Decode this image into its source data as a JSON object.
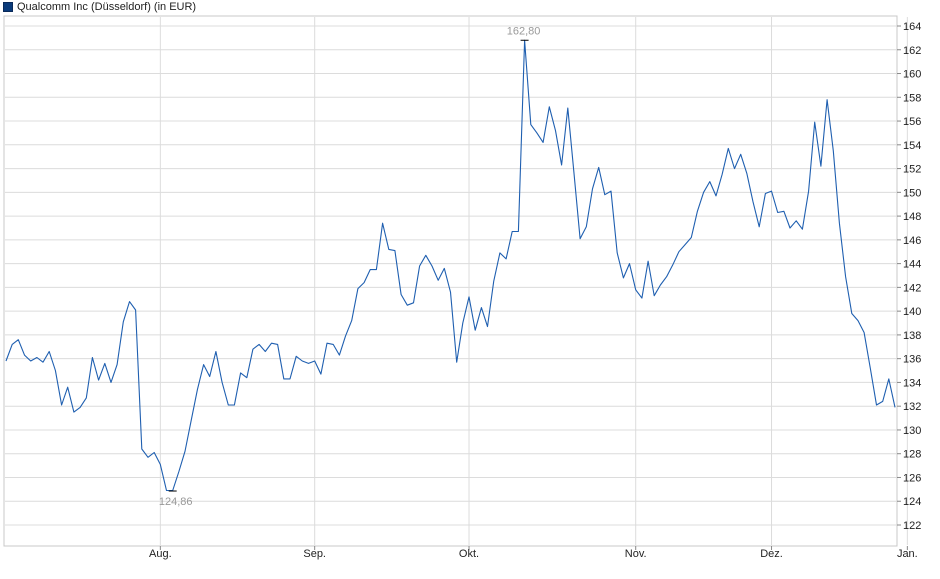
{
  "legend": {
    "label": "Qualcomm Inc (Düsseldorf) (in EUR)",
    "color": "#0a3a7a"
  },
  "chart_data": {
    "type": "line",
    "title": "",
    "xlabel": "",
    "ylabel": "",
    "ylim": [
      120,
      165
    ],
    "y_ticks": [
      122,
      124,
      126,
      128,
      130,
      132,
      134,
      136,
      138,
      140,
      142,
      144,
      146,
      148,
      150,
      152,
      154,
      156,
      158,
      160,
      162,
      164
    ],
    "y_tick_labels": [
      "122",
      "124",
      "126",
      "128",
      "130",
      "132",
      "134",
      "136",
      "138",
      "140",
      "142",
      "144",
      "146",
      "148",
      "150",
      "152",
      "154",
      "156",
      "158",
      "160",
      "162",
      "164"
    ],
    "x_ticks": [
      "Aug.",
      "Sep.",
      "Okt.",
      "Nov.",
      "Dez.",
      "Jan."
    ],
    "x_tick_index": [
      25,
      50,
      75,
      102,
      124,
      146
    ],
    "grid": true,
    "series": [
      {
        "name": "Qualcomm Inc (Düsseldorf)",
        "color": "#1f5fb0",
        "values": [
          135.8,
          137.2,
          137.6,
          136.3,
          135.8,
          136.1,
          135.7,
          136.6,
          135.0,
          132.1,
          133.6,
          131.5,
          131.9,
          132.7,
          136.1,
          134.2,
          135.6,
          134.0,
          135.5,
          139.1,
          140.8,
          140.1,
          128.4,
          127.7,
          128.1,
          127.1,
          124.9,
          124.9,
          126.5,
          128.2,
          130.8,
          133.4,
          135.5,
          134.5,
          136.6,
          134.0,
          132.1,
          132.1,
          134.8,
          134.4,
          136.8,
          137.2,
          136.6,
          137.3,
          137.2,
          134.3,
          134.3,
          136.2,
          135.8,
          135.6,
          135.8,
          134.7,
          137.3,
          137.2,
          136.3,
          137.9,
          139.2,
          141.9,
          142.4,
          143.5,
          143.5,
          147.4,
          145.2,
          145.1,
          141.4,
          140.5,
          140.7,
          143.8,
          144.7,
          143.8,
          142.6,
          143.6,
          141.6,
          135.7,
          139.0,
          141.2,
          138.4,
          140.3,
          138.7,
          142.5,
          144.9,
          144.4,
          146.7,
          146.7,
          162.8,
          155.7,
          155.0,
          154.2,
          157.2,
          155.2,
          152.3,
          157.1,
          151.6,
          146.1,
          147.1,
          150.3,
          152.1,
          149.8,
          150.1,
          144.9,
          142.8,
          144.0,
          141.8,
          141.1,
          144.2,
          141.3,
          142.2,
          142.9,
          143.9,
          145.0,
          145.6,
          146.2,
          148.4,
          150.0,
          150.9,
          149.7,
          151.5,
          153.7,
          152.0,
          153.2,
          151.6,
          149.2,
          147.1,
          149.9,
          150.1,
          148.3,
          148.4,
          147.0,
          147.6,
          146.9,
          150.1,
          155.9,
          152.2,
          157.8,
          153.5,
          147.4,
          142.9,
          139.8,
          139.2,
          138.2,
          135.2,
          132.1,
          132.4,
          134.3,
          131.9
        ]
      }
    ],
    "annotations": [
      {
        "label": "162,80",
        "value": 162.8,
        "index": 84
      },
      {
        "label": "124,86",
        "value": 124.86,
        "index": 27
      }
    ]
  }
}
